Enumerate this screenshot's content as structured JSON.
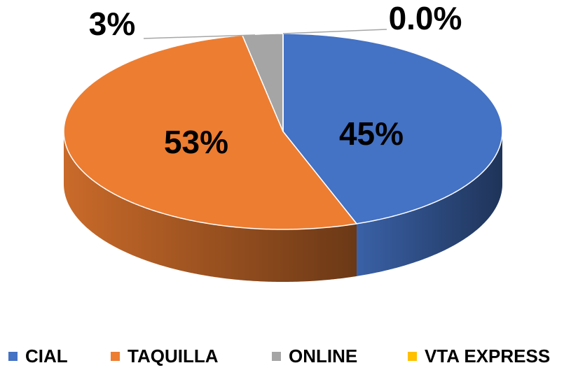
{
  "chart_data": {
    "type": "pie",
    "categories": [
      "CIAL",
      "TAQUILLA",
      "ONLINE",
      "VTA EXPRESS"
    ],
    "values": [
      45,
      53,
      3,
      0.0
    ],
    "value_labels": [
      "45%",
      "53%",
      "3%",
      "0.0%"
    ],
    "colors": [
      "#4472c4",
      "#ed7d31",
      "#a5a5a5",
      "#ffc000"
    ],
    "legend": "bottom"
  }
}
